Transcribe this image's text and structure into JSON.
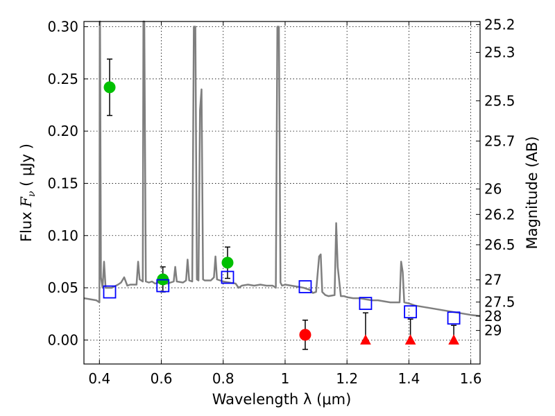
{
  "chart_data": {
    "type": "scatter",
    "title": "",
    "xlabel": "Wavelength  λ (μm)",
    "ylabel_prefix": "Flux ",
    "ylabel_symbol": "F",
    "ylabel_sub": "ν",
    "ylabel_suffix": " ( μJy )",
    "y2label": "Magnitude (AB)",
    "xlim": [
      0.35,
      1.63
    ],
    "ylim": [
      -0.023,
      0.305
    ],
    "grid": true,
    "x_ticks": [
      "0.4",
      "0.6",
      "0.8",
      "1",
      "1.2",
      "1.4",
      "1.6"
    ],
    "y_ticks": [
      "0.30",
      "0.25",
      "0.20",
      "0.15",
      "0.10",
      "0.05",
      "0.00"
    ],
    "y2_ticks": [
      "25.2",
      "25.3",
      "25.5",
      "25.7",
      "26",
      "26.2",
      "26.5",
      "27",
      "27.5",
      "28",
      "29"
    ],
    "colors": {
      "template": "#7f7f7f",
      "detection": "#00c000",
      "low_sn": "#ff0000",
      "model": "#0000ff",
      "errorbar": "#000000"
    },
    "series": [
      {
        "kind": "template_sed",
        "points": [
          [
            0.35,
            0.04
          ],
          [
            0.37,
            0.039
          ],
          [
            0.39,
            0.038
          ],
          [
            0.4,
            0.036
          ],
          [
            0.401,
            0.32
          ],
          [
            0.402,
            0.32
          ],
          [
            0.405,
            0.06
          ],
          [
            0.41,
            0.05
          ],
          [
            0.415,
            0.075
          ],
          [
            0.42,
            0.05
          ],
          [
            0.44,
            0.05
          ],
          [
            0.46,
            0.053
          ],
          [
            0.47,
            0.055
          ],
          [
            0.48,
            0.06
          ],
          [
            0.49,
            0.052
          ],
          [
            0.5,
            0.053
          ],
          [
            0.52,
            0.053
          ],
          [
            0.525,
            0.075
          ],
          [
            0.53,
            0.058
          ],
          [
            0.54,
            0.056
          ],
          [
            0.542,
            0.32
          ],
          [
            0.545,
            0.32
          ],
          [
            0.55,
            0.056
          ],
          [
            0.56,
            0.055
          ],
          [
            0.57,
            0.056
          ],
          [
            0.58,
            0.054
          ],
          [
            0.59,
            0.055
          ],
          [
            0.6,
            0.054
          ],
          [
            0.62,
            0.054
          ],
          [
            0.64,
            0.056
          ],
          [
            0.645,
            0.07
          ],
          [
            0.65,
            0.056
          ],
          [
            0.67,
            0.055
          ],
          [
            0.68,
            0.057
          ],
          [
            0.685,
            0.077
          ],
          [
            0.69,
            0.057
          ],
          [
            0.7,
            0.056
          ],
          [
            0.705,
            0.3
          ],
          [
            0.71,
            0.3
          ],
          [
            0.715,
            0.058
          ],
          [
            0.72,
            0.057
          ],
          [
            0.725,
            0.22
          ],
          [
            0.73,
            0.24
          ],
          [
            0.735,
            0.058
          ],
          [
            0.74,
            0.057
          ],
          [
            0.76,
            0.057
          ],
          [
            0.77,
            0.06
          ],
          [
            0.775,
            0.08
          ],
          [
            0.78,
            0.058
          ],
          [
            0.8,
            0.056
          ],
          [
            0.82,
            0.055
          ],
          [
            0.84,
            0.054
          ],
          [
            0.85,
            0.05
          ],
          [
            0.86,
            0.052
          ],
          [
            0.88,
            0.053
          ],
          [
            0.9,
            0.052
          ],
          [
            0.92,
            0.053
          ],
          [
            0.94,
            0.052
          ],
          [
            0.96,
            0.052
          ],
          [
            0.97,
            0.05
          ],
          [
            0.975,
            0.3
          ],
          [
            0.98,
            0.3
          ],
          [
            0.985,
            0.055
          ],
          [
            0.99,
            0.052
          ],
          [
            1.0,
            0.053
          ],
          [
            1.02,
            0.052
          ],
          [
            1.04,
            0.051
          ],
          [
            1.06,
            0.05
          ],
          [
            1.08,
            0.048
          ],
          [
            1.09,
            0.045
          ],
          [
            1.1,
            0.046
          ],
          [
            1.11,
            0.08
          ],
          [
            1.115,
            0.082
          ],
          [
            1.12,
            0.046
          ],
          [
            1.13,
            0.043
          ],
          [
            1.14,
            0.042
          ],
          [
            1.16,
            0.043
          ],
          [
            1.165,
            0.112
          ],
          [
            1.17,
            0.07
          ],
          [
            1.18,
            0.042
          ],
          [
            1.19,
            0.042
          ],
          [
            1.2,
            0.041
          ],
          [
            1.22,
            0.04
          ],
          [
            1.24,
            0.04
          ],
          [
            1.26,
            0.039
          ],
          [
            1.28,
            0.038
          ],
          [
            1.3,
            0.038
          ],
          [
            1.32,
            0.037
          ],
          [
            1.34,
            0.036
          ],
          [
            1.36,
            0.036
          ],
          [
            1.37,
            0.036
          ],
          [
            1.375,
            0.075
          ],
          [
            1.38,
            0.065
          ],
          [
            1.385,
            0.036
          ],
          [
            1.4,
            0.035
          ],
          [
            1.42,
            0.033
          ],
          [
            1.44,
            0.032
          ],
          [
            1.46,
            0.031
          ],
          [
            1.48,
            0.03
          ],
          [
            1.5,
            0.029
          ],
          [
            1.52,
            0.028
          ],
          [
            1.54,
            0.027
          ],
          [
            1.56,
            0.026
          ],
          [
            1.58,
            0.025
          ],
          [
            1.6,
            0.024
          ],
          [
            1.63,
            0.023
          ]
        ]
      },
      {
        "kind": "detection",
        "points": [
          {
            "x": 0.433,
            "y": 0.242,
            "err": 0.027
          },
          {
            "x": 0.605,
            "y": 0.058,
            "err": 0.012
          },
          {
            "x": 0.814,
            "y": 0.074,
            "err": 0.015
          }
        ]
      },
      {
        "kind": "low_sn",
        "points": [
          {
            "x": 1.065,
            "y": 0.005,
            "err": 0.014
          }
        ]
      },
      {
        "kind": "upper_limit",
        "points": [
          {
            "x": 1.26,
            "y": 0.0,
            "upper": 0.026
          },
          {
            "x": 1.405,
            "y": 0.0,
            "upper": 0.02
          },
          {
            "x": 1.545,
            "y": 0.0,
            "upper": 0.014
          }
        ]
      },
      {
        "kind": "model_photometry",
        "points": [
          {
            "x": 0.433,
            "y": 0.046
          },
          {
            "x": 0.605,
            "y": 0.052
          },
          {
            "x": 0.814,
            "y": 0.06
          },
          {
            "x": 1.065,
            "y": 0.051
          },
          {
            "x": 1.26,
            "y": 0.035
          },
          {
            "x": 1.405,
            "y": 0.027
          },
          {
            "x": 1.545,
            "y": 0.021
          }
        ]
      }
    ]
  }
}
